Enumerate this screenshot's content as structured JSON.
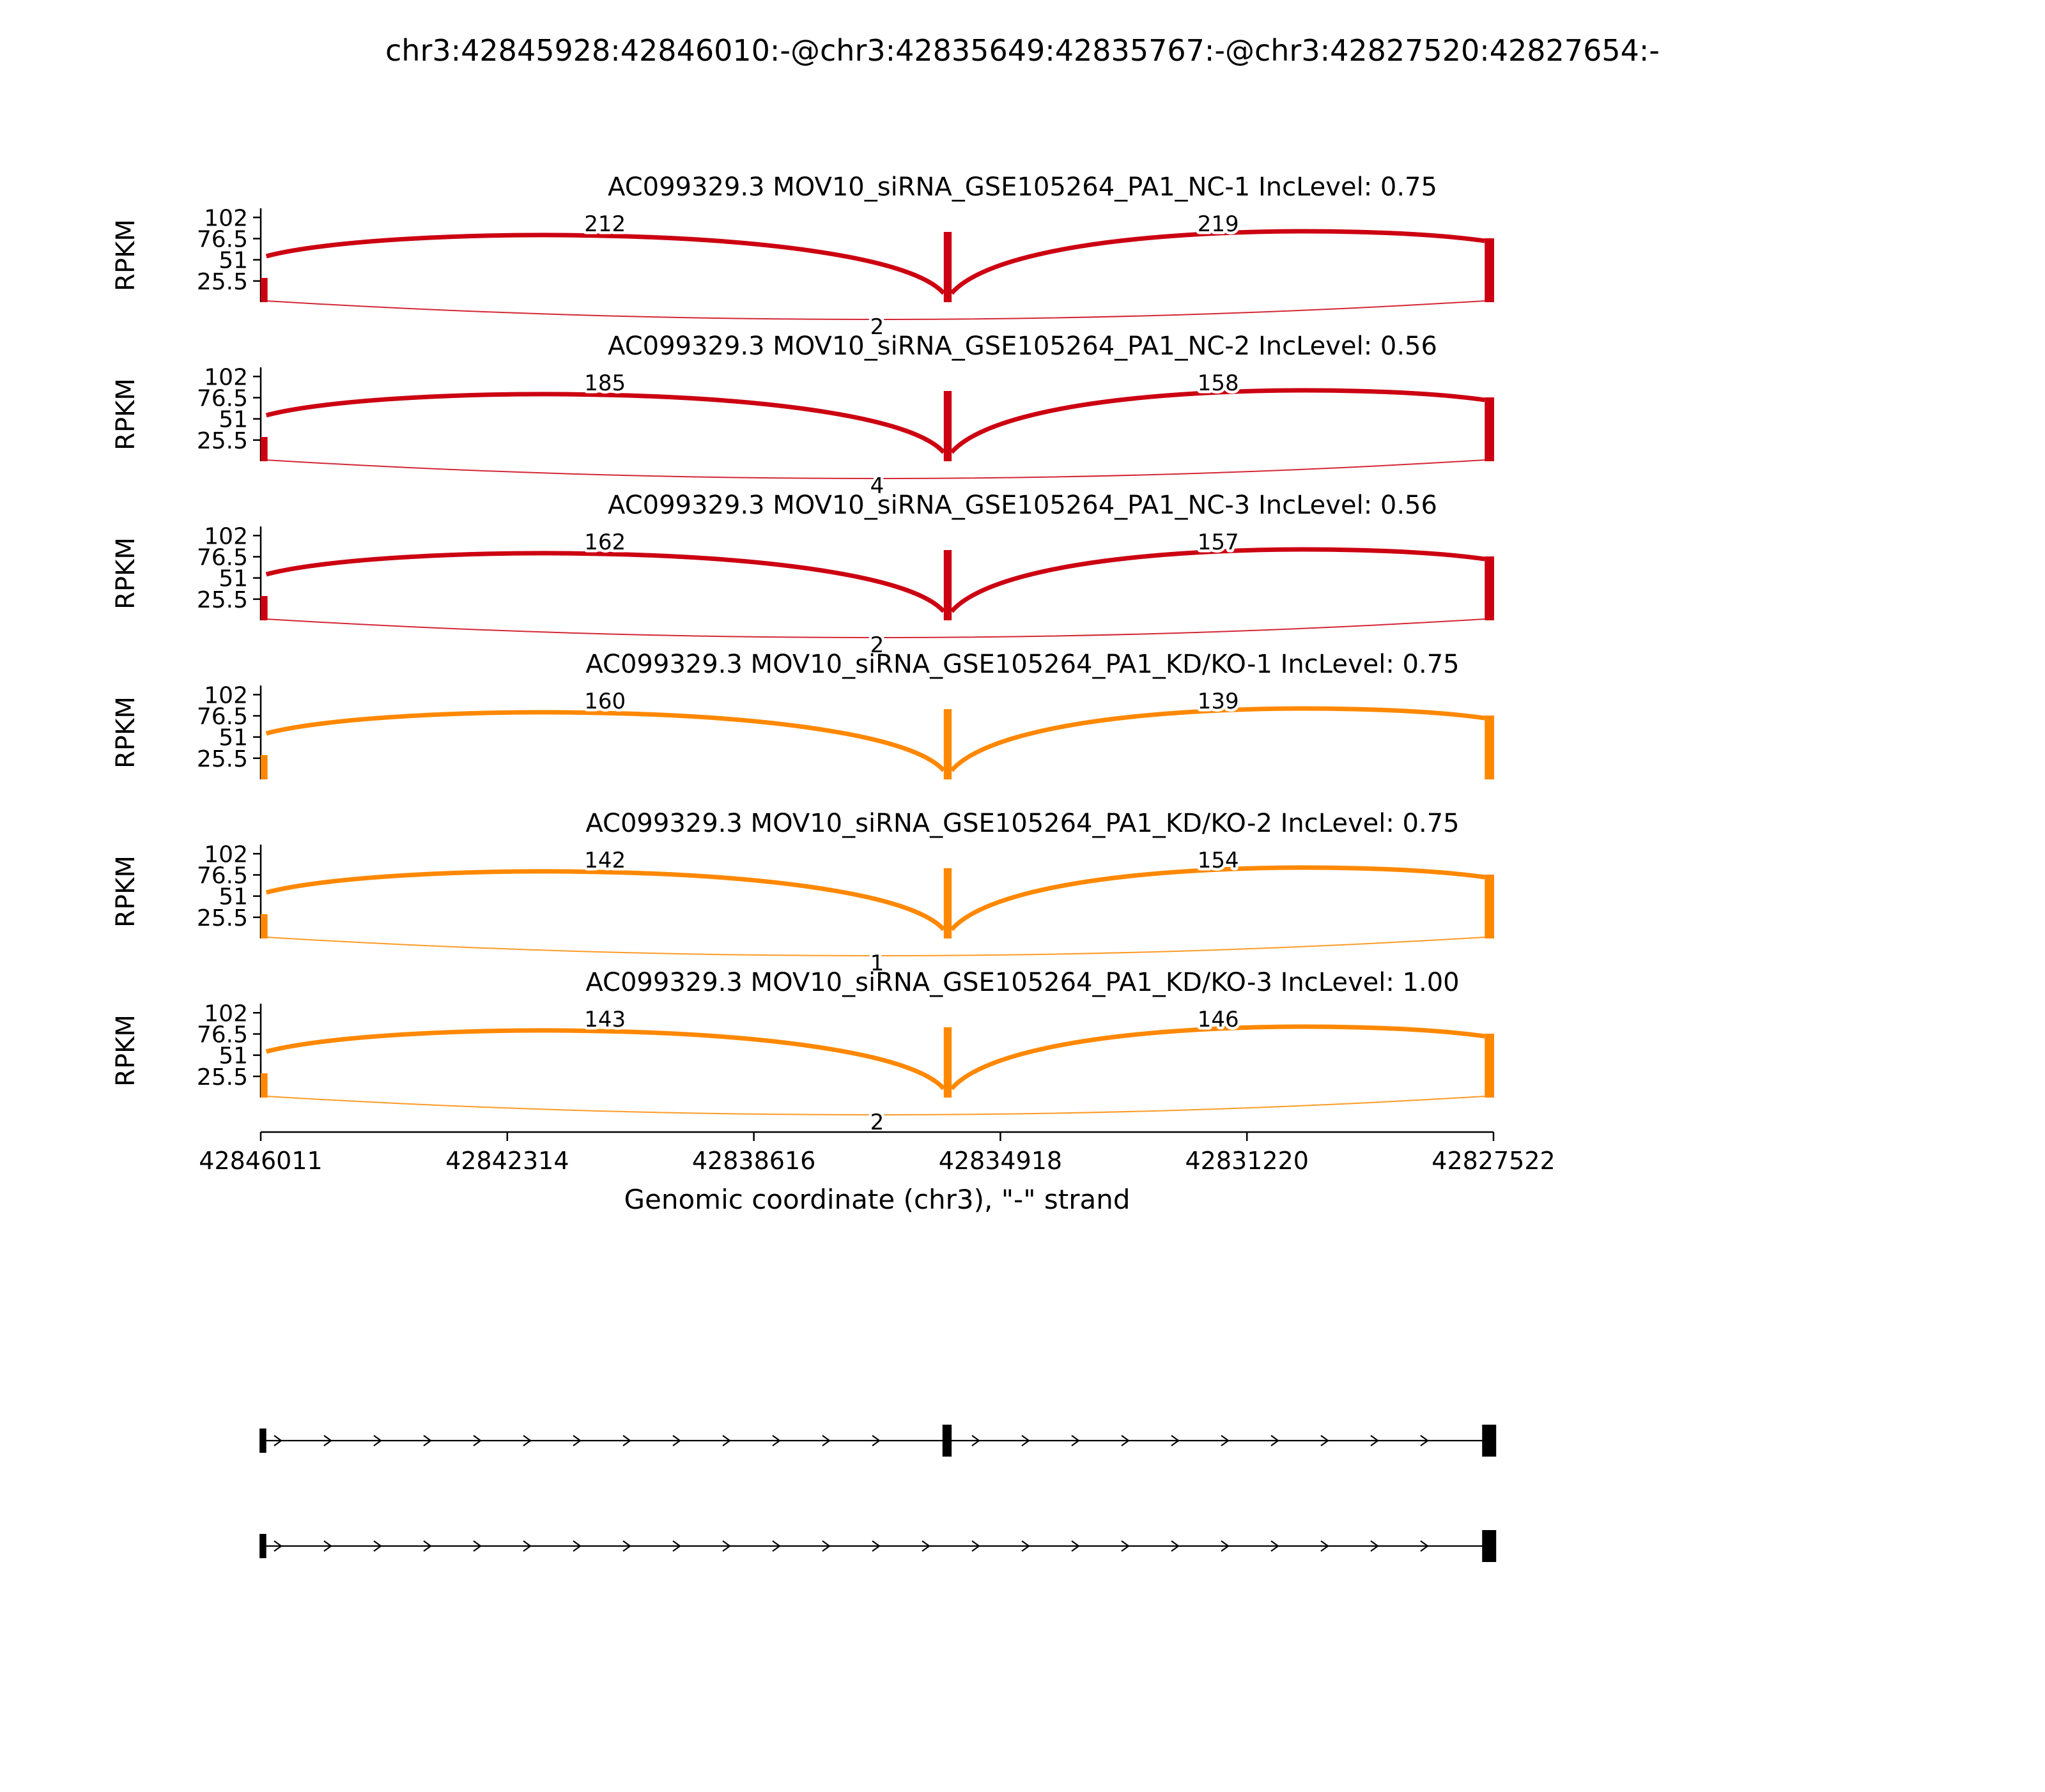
{
  "title": "chr3:42845928:42846010:-@chr3:42835649:42835767:-@chr3:42827520:42827654:-",
  "colors": {
    "nc_group": "#CC0011",
    "kd_group": "#FF8800",
    "axis": "#000000"
  },
  "chart_data": {
    "type": "sashimi",
    "title": "chr3:42845928:42846010:-@chr3:42835649:42835767:-@chr3:42827520:42827654:-",
    "xlabel": "Genomic coordinate (chr3), \"-\" strand",
    "ylabel": "RPKM",
    "strand": "-",
    "chromosome": "chr3",
    "x_domain": [
      42846011,
      42827522
    ],
    "x_ticks": [
      "42846011",
      "42842314",
      "42838616",
      "42834918",
      "42831220",
      "42827522"
    ],
    "y_ticks": [
      "102",
      "76.5",
      "51",
      "25.5"
    ],
    "y_axis_max": 113,
    "exons": [
      [
        42845928,
        42846010
      ],
      [
        42835649,
        42835767
      ],
      [
        42827520,
        42827654
      ]
    ],
    "tracks": [
      {
        "label": "AC099329.3 MOV10_siRNA_GSE105264_PA1_NC-1 IncLevel: 0.75",
        "sample": "MOV10_siRNA_GSE105264_PA1_NC-1",
        "gene": "AC099329.3",
        "inc_level": "0.75",
        "color": "#CC0011",
        "inclusion_junctions": [
          212,
          219
        ],
        "skipping_junction": 2
      },
      {
        "label": "AC099329.3 MOV10_siRNA_GSE105264_PA1_NC-2 IncLevel: 0.56",
        "sample": "MOV10_siRNA_GSE105264_PA1_NC-2",
        "gene": "AC099329.3",
        "inc_level": "0.56",
        "color": "#CC0011",
        "inclusion_junctions": [
          185,
          158
        ],
        "skipping_junction": 4
      },
      {
        "label": "AC099329.3 MOV10_siRNA_GSE105264_PA1_NC-3 IncLevel: 0.56",
        "sample": "MOV10_siRNA_GSE105264_PA1_NC-3",
        "gene": "AC099329.3",
        "inc_level": "0.56",
        "color": "#CC0011",
        "inclusion_junctions": [
          162,
          157
        ],
        "skipping_junction": 2
      },
      {
        "label": "AC099329.3 MOV10_siRNA_GSE105264_PA1_KD/KO-1 IncLevel: 0.75",
        "sample": "MOV10_siRNA_GSE105264_PA1_KD/KO-1",
        "gene": "AC099329.3",
        "inc_level": "0.75",
        "color": "#FF8800",
        "inclusion_junctions": [
          160,
          139
        ],
        "skipping_junction": null
      },
      {
        "label": "AC099329.3 MOV10_siRNA_GSE105264_PA1_KD/KO-2 IncLevel: 0.75",
        "sample": "MOV10_siRNA_GSE105264_PA1_KD/KO-2",
        "gene": "AC099329.3",
        "inc_level": "0.75",
        "color": "#FF8800",
        "inclusion_junctions": [
          142,
          154
        ],
        "skipping_junction": 1
      },
      {
        "label": "AC099329.3 MOV10_siRNA_GSE105264_PA1_KD/KO-3 IncLevel: 1.00",
        "sample": "MOV10_siRNA_GSE105264_PA1_KD/KO-3",
        "gene": "AC099329.3",
        "inc_level": "1.00",
        "color": "#FF8800",
        "inclusion_junctions": [
          143,
          146
        ],
        "skipping_junction": 2
      }
    ],
    "transcripts": [
      {
        "exons": [
          0,
          1,
          2
        ]
      },
      {
        "exons": [
          0,
          2
        ]
      }
    ]
  }
}
